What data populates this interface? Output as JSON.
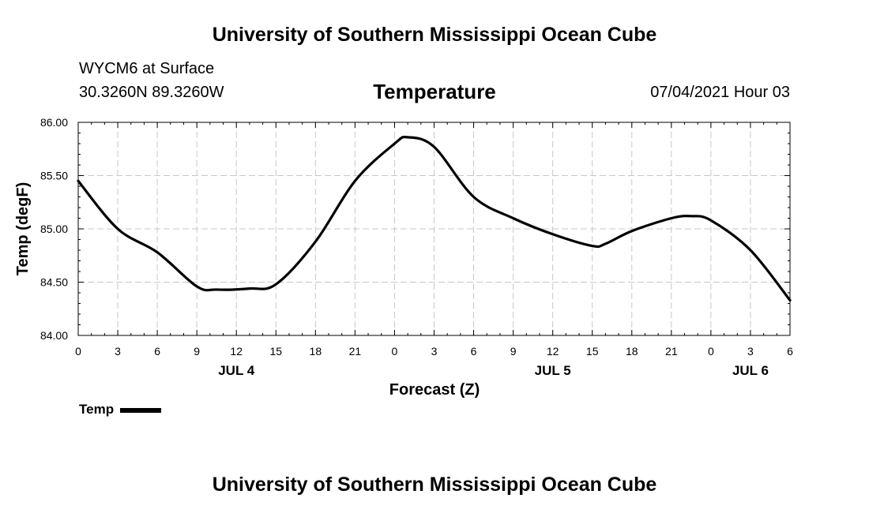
{
  "header": {
    "title_top": "University of Southern Mississippi Ocean Cube",
    "title_bottom": "University of Southern Mississippi Ocean Cube",
    "station": "WYCM6 at Surface",
    "coords": "30.3260N  89.3260W",
    "chart_title": "Temperature",
    "timestamp": "07/04/2021 Hour 03"
  },
  "legend": {
    "label": "Temp"
  },
  "colors": {
    "line": "#000000",
    "grid": "#c8c8c8",
    "background": "#ffffff"
  },
  "chart_data": {
    "type": "line",
    "title": "Temperature",
    "xlabel": "Forecast (Z)",
    "ylabel": "Temp (degF)",
    "ylim": [
      84.0,
      86.0
    ],
    "xlim": [
      0,
      54
    ],
    "y_ticks": [
      "84.00",
      "84.50",
      "85.00",
      "85.50",
      "86.00"
    ],
    "y_tick_values": [
      84.0,
      84.5,
      85.0,
      85.5,
      86.0
    ],
    "x_ticks": [
      "0",
      "3",
      "6",
      "9",
      "12",
      "15",
      "18",
      "21",
      "0",
      "3",
      "6",
      "9",
      "12",
      "15",
      "18",
      "21",
      "0",
      "3",
      "6"
    ],
    "date_labels": [
      {
        "label": "JUL 4",
        "x": 12
      },
      {
        "label": "JUL 5",
        "x": 36
      },
      {
        "label": "JUL 6",
        "x": 51
      }
    ],
    "grid": true,
    "series": [
      {
        "name": "Temp",
        "x": [
          0,
          3,
          6,
          9,
          10.5,
          13,
          15,
          18,
          21,
          24,
          25,
          27,
          30,
          33,
          36,
          39,
          40,
          42,
          45,
          46.5,
          48,
          51,
          54
        ],
        "values": [
          85.45,
          85.0,
          84.78,
          84.46,
          84.43,
          84.44,
          84.48,
          84.88,
          85.45,
          85.8,
          85.86,
          85.77,
          85.3,
          85.1,
          84.95,
          84.84,
          84.86,
          84.98,
          85.1,
          85.12,
          85.08,
          84.8,
          84.33
        ]
      }
    ]
  }
}
